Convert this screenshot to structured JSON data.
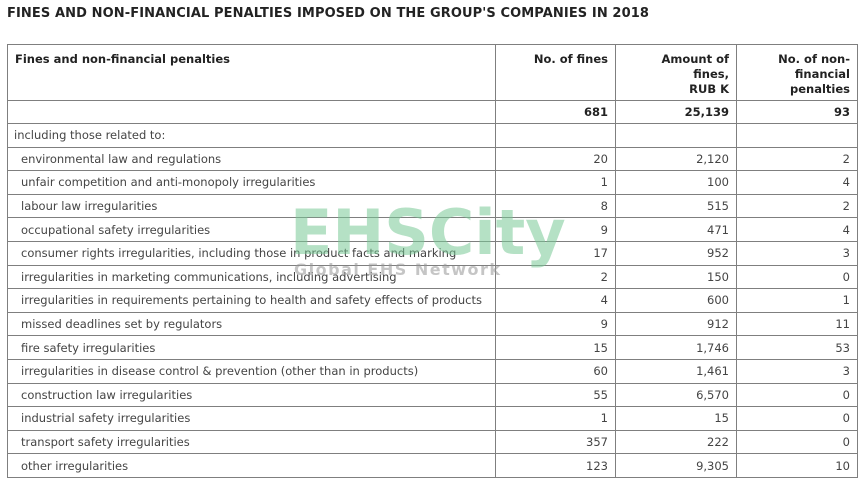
{
  "title": "FINES AND NON-FINANCIAL PENALTIES IMPOSED ON THE GROUP'S COMPANIES IN 2018",
  "headers": {
    "col1": "Fines and non-financial penalties",
    "col2": "No. of fines",
    "col3_line1": "Amount of fines,",
    "col3_line2": "RUB K",
    "col4_line1": "No. of non-financial",
    "col4_line2": "penalties"
  },
  "totals": {
    "fines": "681",
    "amount": "25,139",
    "nonfin": "93"
  },
  "subheading": "including those related to:",
  "rows": [
    {
      "label": "environmental law and regulations",
      "fines": "20",
      "amount": "2,120",
      "nonfin": "2"
    },
    {
      "label": "unfair competition and anti-monopoly irregularities",
      "fines": "1",
      "amount": "100",
      "nonfin": "4"
    },
    {
      "label": "labour law irregularities",
      "fines": "8",
      "amount": "515",
      "nonfin": "2"
    },
    {
      "label": "occupational safety irregularities",
      "fines": "9",
      "amount": "471",
      "nonfin": "4"
    },
    {
      "label": "consumer rights irregularities, including those in product facts and marking",
      "fines": "17",
      "amount": "952",
      "nonfin": "3"
    },
    {
      "label": "irregularities in marketing communications, including advertising",
      "fines": "2",
      "amount": "150",
      "nonfin": "0"
    },
    {
      "label": "irregularities in requirements pertaining to health and safety effects of products",
      "fines": "4",
      "amount": "600",
      "nonfin": "1"
    },
    {
      "label": "missed deadlines set by regulators",
      "fines": "9",
      "amount": "912",
      "nonfin": "11"
    },
    {
      "label": "fire safety irregularities",
      "fines": "15",
      "amount": "1,746",
      "nonfin": "53"
    },
    {
      "label": "irregularities in disease control & prevention (other than in products)",
      "fines": "60",
      "amount": "1,461",
      "nonfin": "3"
    },
    {
      "label": "construction law irregularities",
      "fines": "55",
      "amount": "6,570",
      "nonfin": "0"
    },
    {
      "label": "industrial safety irregularities",
      "fines": "1",
      "amount": "15",
      "nonfin": "0"
    },
    {
      "label": "transport safety irregularities",
      "fines": "357",
      "amount": "222",
      "nonfin": "0"
    },
    {
      "label": "other irregularities",
      "fines": "123",
      "amount": "9,305",
      "nonfin": "10"
    }
  ],
  "watermark": {
    "main": "EHSCity",
    "sub": "Global EHS Network"
  }
}
